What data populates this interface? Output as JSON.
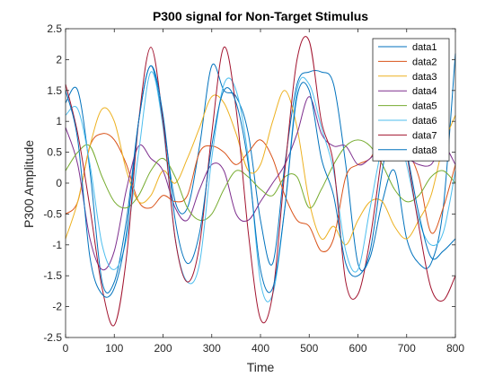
{
  "chart_data": {
    "type": "line",
    "title": "P300 signal for Non-Target Stimulus",
    "xlabel": "Time",
    "ylabel": "P300 Amplitude",
    "xlim": [
      0,
      800
    ],
    "ylim": [
      -2.5,
      2.5
    ],
    "xticks": [
      "0",
      "100",
      "200",
      "300",
      "400",
      "500",
      "600",
      "700",
      "800"
    ],
    "yticks": [
      "-2.5",
      "-2",
      "-1.5",
      "-1",
      "-0.5",
      "0",
      "0.5",
      "1",
      "1.5",
      "2",
      "2.5"
    ],
    "grid": false,
    "legend_position": "top-right",
    "x": [
      0,
      25,
      50,
      75,
      100,
      125,
      150,
      175,
      200,
      225,
      250,
      275,
      300,
      325,
      350,
      375,
      400,
      425,
      450,
      475,
      500,
      525,
      550,
      575,
      600,
      625,
      650,
      675,
      700,
      725,
      750,
      775,
      800
    ],
    "series": [
      {
        "name": "data1",
        "color": "#0072BD",
        "values": [
          1.3,
          1.5,
          0.2,
          -1.6,
          -1.6,
          -0.6,
          1.0,
          1.9,
          1.0,
          -0.3,
          -0.4,
          0.6,
          1.9,
          1.5,
          1.4,
          0.8,
          -0.6,
          -1.3,
          0.3,
          1.6,
          1.8,
          1.8,
          1.6,
          0.3,
          -1.3,
          -1.2,
          -0.3,
          0.2,
          -0.9,
          -1.3,
          -1.3,
          -0.4,
          2.1
        ]
      },
      {
        "name": "data2",
        "color": "#D95319",
        "values": [
          -0.5,
          -0.3,
          0.6,
          0.8,
          0.7,
          0.3,
          -0.3,
          -0.4,
          -0.2,
          -0.3,
          -0.2,
          0.5,
          0.6,
          0.5,
          0.3,
          0.5,
          0.7,
          0.4,
          -0.2,
          -0.6,
          -0.7,
          -1.1,
          -0.9,
          0.1,
          0.3,
          0.4,
          0.7,
          0.4,
          0.5,
          0.1,
          -0.8,
          -0.4,
          0.3
        ]
      },
      {
        "name": "data3",
        "color": "#EDB120",
        "values": [
          -0.9,
          -0.3,
          0.6,
          1.2,
          1.0,
          0.2,
          -0.3,
          -0.2,
          0.2,
          0.0,
          0.4,
          0.9,
          1.4,
          1.3,
          0.8,
          0.2,
          0.3,
          1.0,
          1.5,
          0.9,
          -0.3,
          -0.9,
          -0.7,
          -1.0,
          -0.6,
          -0.3,
          -0.3,
          -0.7,
          -0.9,
          -0.6,
          -0.2,
          0.6,
          1.1
        ]
      },
      {
        "name": "data4",
        "color": "#7E2F8E",
        "values": [
          0.9,
          0.3,
          -0.9,
          -1.4,
          -1.1,
          -0.1,
          0.6,
          0.4,
          0.2,
          -0.4,
          -0.6,
          -0.1,
          0.3,
          0.2,
          -0.5,
          -0.6,
          -0.3,
          0.0,
          0.3,
          0.8,
          1.4,
          0.8,
          0.6,
          0.6,
          0.3,
          0.4,
          0.6,
          0.4,
          0.4,
          0.3,
          0.3,
          0.6,
          0.3
        ]
      },
      {
        "name": "data5",
        "color": "#77AC30",
        "values": [
          0.2,
          0.5,
          0.6,
          0.1,
          -0.3,
          -0.4,
          -0.2,
          0.2,
          0.4,
          0.1,
          -0.4,
          -0.6,
          -0.5,
          -0.1,
          0.2,
          0.1,
          -0.1,
          -0.2,
          0.1,
          0.1,
          -0.4,
          -0.1,
          0.3,
          0.6,
          0.7,
          0.6,
          0.3,
          -0.1,
          -0.3,
          -0.2,
          0.1,
          0.2,
          0.0
        ]
      },
      {
        "name": "data6",
        "color": "#4DBEEE",
        "values": [
          1.1,
          1.2,
          0.3,
          -1.0,
          -1.4,
          -0.9,
          0.5,
          1.8,
          0.9,
          -0.9,
          -1.6,
          -1.3,
          0.4,
          1.6,
          1.5,
          0.4,
          -1.6,
          -1.8,
          -0.4,
          1.5,
          1.6,
          0.9,
          0.2,
          -1.1,
          -1.4,
          -0.4,
          0.6,
          1.0,
          0.3,
          -0.6,
          -1.0,
          -0.8,
          0.2
        ]
      },
      {
        "name": "data7",
        "color": "#A2142F",
        "values": [
          1.6,
          0.8,
          -0.4,
          -1.7,
          -2.3,
          -1.2,
          1.0,
          2.2,
          1.0,
          -0.9,
          -1.6,
          -1.0,
          0.8,
          2.2,
          1.2,
          -0.8,
          -2.2,
          -1.8,
          0.2,
          2.0,
          2.3,
          1.0,
          0.3,
          -1.6,
          -1.8,
          -0.9,
          0.5,
          1.8,
          0.5,
          -0.7,
          -1.7,
          -1.9,
          -1.5
        ]
      },
      {
        "name": "data8",
        "color": "#0072BD",
        "values": [
          1.5,
          0.7,
          -1.2,
          -1.8,
          -1.7,
          -0.8,
          1.0,
          1.9,
          1.1,
          -0.6,
          -1.3,
          -0.8,
          0.6,
          1.5,
          1.3,
          0.3,
          -1.4,
          -1.7,
          -0.4,
          1.4,
          1.5,
          0.4,
          -0.2,
          -1.3,
          -1.5,
          -1.1,
          0.2,
          1.2,
          0.5,
          -0.5,
          -1.2,
          -1.1,
          -0.9
        ]
      }
    ]
  }
}
